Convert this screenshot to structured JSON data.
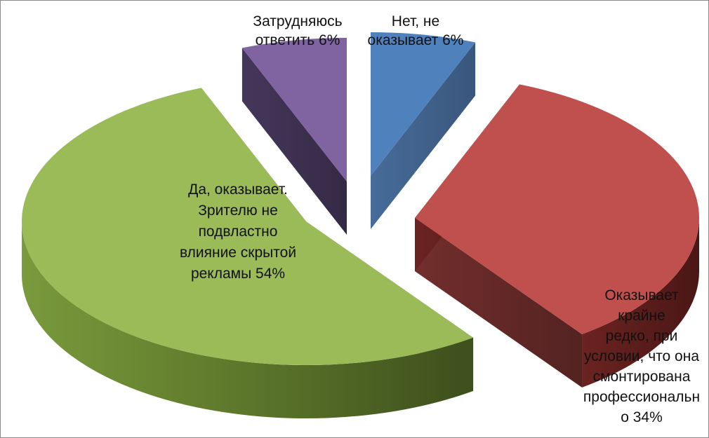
{
  "chart_data": {
    "type": "pie",
    "style": "3d-exploded",
    "title": "",
    "legend": "none",
    "slices": [
      {
        "label_lines": [
          "Нет, не",
          "оказывает 6%"
        ],
        "value": 6,
        "color": "#4f81bd"
      },
      {
        "label_lines": [
          "Оказывает",
          "крайне",
          "редко, при",
          "условии, что она",
          "смонтирована",
          "профессиональн",
          "о 34%"
        ],
        "value": 34,
        "color": "#c0504d"
      },
      {
        "label_lines": [
          "Да, оказывает.",
          "Зрителю не",
          "подвластно",
          "влияние скрытой",
          "рекламы 54%"
        ],
        "value": 54,
        "color": "#9bbb59"
      },
      {
        "label_lines": [
          "Затрудняюсь",
          "ответить 6%"
        ],
        "value": 6,
        "color": "#8064a2"
      }
    ]
  }
}
